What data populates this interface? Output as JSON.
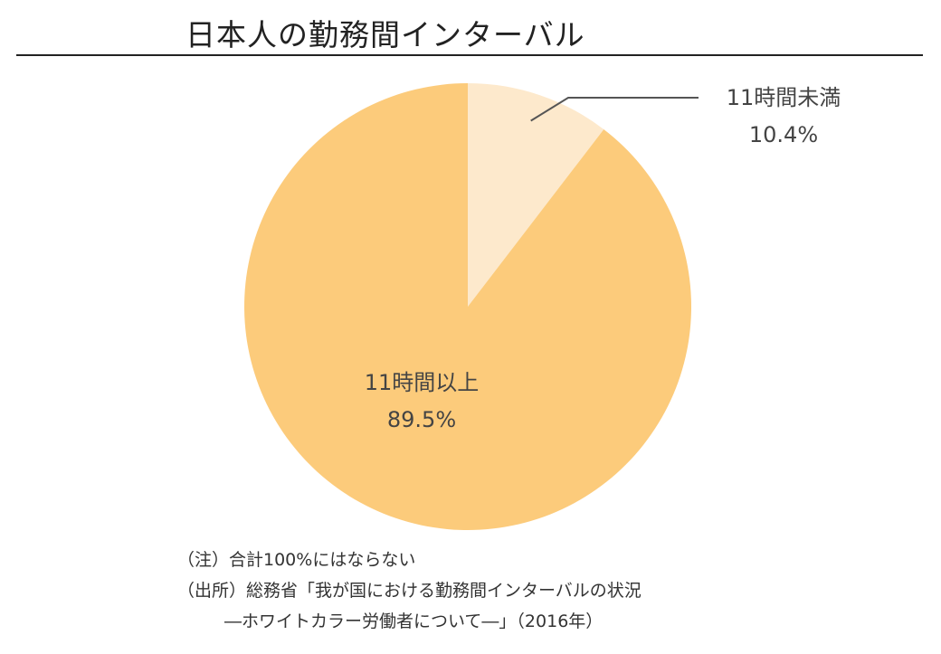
{
  "chart_data": {
    "type": "pie",
    "title": "日本人の勤務間インターバル",
    "slices": [
      {
        "label": "11時間未満",
        "value": 10.4,
        "value_label": "10.4%",
        "color": "#fde9cc"
      },
      {
        "label": "11時間以上",
        "value": 89.5,
        "value_label": "89.5%",
        "color": "#fccb7b"
      }
    ],
    "start": "12 o'clock",
    "direction": "clockwise"
  },
  "notes": {
    "line1": "（注）合計100%にはならない",
    "line2": "（出所）総務省「我が国における勤務間インターバルの状況",
    "line3": "―ホワイトカラー労働者について―」（2016年）"
  },
  "colors": {
    "leader_line": "#555555",
    "title_rule": "#222222"
  }
}
